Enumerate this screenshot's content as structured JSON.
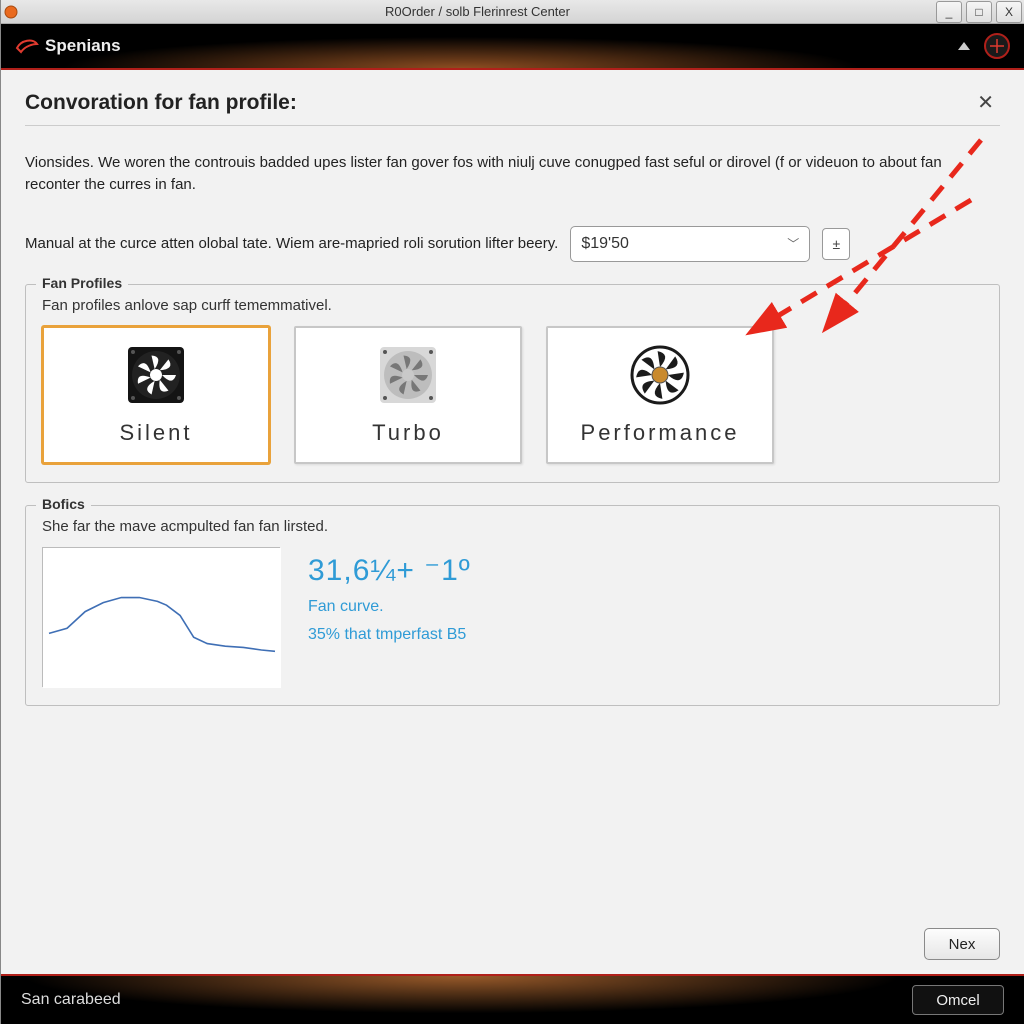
{
  "window": {
    "title": "R0Order / solb Flerinrest Center"
  },
  "brand": {
    "name": "Spenians",
    "logo_color": "#e03a2f"
  },
  "page": {
    "title": "Convoration for fan profile:",
    "intro": "Vionsides. We woren the controuis badded upes lister fan gover fos with niulj cuve conugped fast seful or dirovel (f or videuon to about fan reconter the curres in fan.",
    "select_label": "Manual at the curce atten olobal tate. Wiem are-mapried roli sorution lifter beery.",
    "select_value": "$19'50"
  },
  "profiles": {
    "legend": "Fan Profiles",
    "desc": "Fan profiles anlove sap curff tememmativel.",
    "items": [
      {
        "label": "Silent",
        "fan_color": "#141414",
        "hub_color": "#ffffff",
        "selected": true
      },
      {
        "label": "Turbo",
        "fan_color": "#8a8a8a",
        "hub_color": "#c9c9c9",
        "selected": false
      },
      {
        "label": "Performance",
        "fan_color": "#1b1b1b",
        "hub_color": "#c98a2e",
        "selected": false
      }
    ]
  },
  "bofics": {
    "legend": "Bofics",
    "desc": "She far the mave acmpulted fan fan lirsted.",
    "stat_big": "31,6¼+ ⁻1º",
    "stat_line1": "Fan curve.",
    "stat_line2": "35% that tmperfast B5",
    "chart": {
      "type": "line",
      "xlim": [
        0,
        100
      ],
      "ylim": [
        0,
        100
      ],
      "points": [
        [
          0,
          38
        ],
        [
          8,
          42
        ],
        [
          16,
          55
        ],
        [
          24,
          62
        ],
        [
          32,
          66
        ],
        [
          40,
          66
        ],
        [
          48,
          63
        ],
        [
          52,
          60
        ],
        [
          58,
          52
        ],
        [
          64,
          35
        ],
        [
          70,
          30
        ],
        [
          78,
          28
        ],
        [
          86,
          27
        ],
        [
          94,
          25
        ],
        [
          100,
          24
        ]
      ],
      "line_color": "#3f6fb5",
      "line_width": 1.6,
      "background_color": "#ffffff",
      "border_color": "#bbbbbb"
    }
  },
  "buttons": {
    "next": "Nex",
    "cancel": "Omcel"
  },
  "bottom": {
    "status": "San carabeed"
  },
  "annotation": {
    "arrow_color": "#e8281c"
  },
  "colors": {
    "accent_red": "#b0201a",
    "link_blue": "#2f9bd6",
    "panel_bg": "#f2f2f2"
  }
}
